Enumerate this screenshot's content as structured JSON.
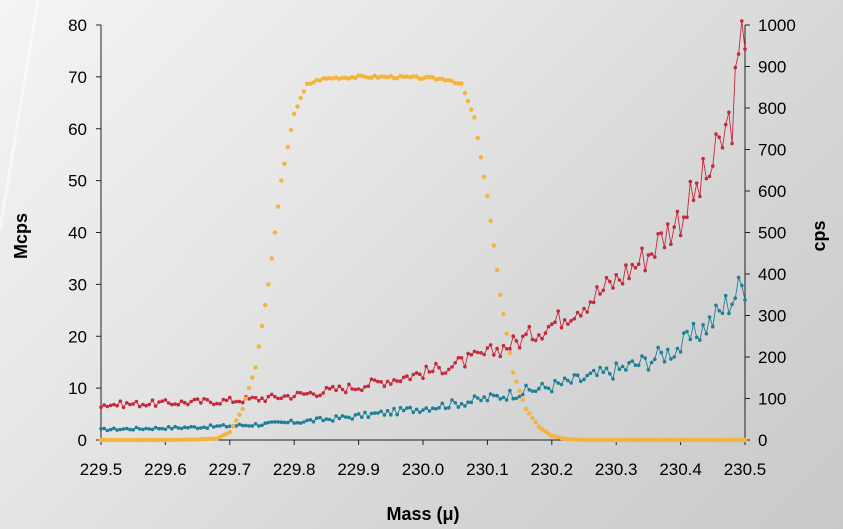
{
  "chart_data": {
    "type": "scatter",
    "title": "",
    "xlabel": "Mass (μ)",
    "ylabel_left": "Mcps",
    "ylabel_right": "cps",
    "xlim": [
      229.5,
      230.5
    ],
    "ylim_left": [
      0,
      80
    ],
    "ylim_right": [
      0,
      1000
    ],
    "grid": false,
    "legend": "none",
    "x_ticks": [
      "229.5",
      "229.6",
      "229.7",
      "229.8",
      "229.9",
      "230.0",
      "230.1",
      "230.2",
      "230.3",
      "230.4",
      "230.5"
    ],
    "y_left_ticks": [
      "0",
      "10",
      "20",
      "30",
      "40",
      "50",
      "60",
      "70",
      "80"
    ],
    "y_right_ticks": [
      "0",
      "100",
      "200",
      "300",
      "400",
      "500",
      "600",
      "700",
      "800",
      "900",
      "1000"
    ],
    "series": [
      {
        "axis": "left",
        "color": "#f6b33a",
        "style": "markers",
        "x": [
          229.5,
          229.55,
          229.6,
          229.65,
          229.68,
          229.7,
          229.72,
          229.74,
          229.76,
          229.78,
          229.8,
          229.82,
          229.84,
          229.86,
          229.9,
          229.95,
          230.0,
          230.04,
          230.06,
          230.08,
          230.1,
          230.12,
          230.14,
          230.16,
          230.18,
          230.2,
          230.22,
          230.25,
          230.3,
          230.4,
          230.5
        ],
        "y": [
          0,
          0,
          0,
          0.1,
          0.3,
          1.5,
          6,
          14,
          30,
          50,
          63,
          68.5,
          69.5,
          69.8,
          70,
          70,
          69.8,
          69.5,
          68.5,
          62,
          47,
          28,
          13,
          6,
          2.5,
          0.8,
          0.2,
          0,
          0,
          0,
          0
        ]
      },
      {
        "axis": "right",
        "color": "#c8283c",
        "style": "line-markers",
        "x": [
          229.5,
          229.55,
          229.6,
          229.65,
          229.7,
          229.75,
          229.8,
          229.85,
          229.9,
          229.95,
          230.0,
          230.05,
          230.1,
          230.15,
          230.2,
          230.25,
          230.3,
          230.35,
          230.4,
          230.45,
          230.48,
          230.5
        ],
        "y": [
          85,
          87,
          89,
          92,
          95,
          100,
          108,
          118,
          130,
          145,
          162,
          182,
          208,
          240,
          280,
          330,
          385,
          450,
          540,
          660,
          780,
          1000
        ]
      },
      {
        "axis": "right",
        "color": "#1f7f96",
        "style": "line-markers",
        "x": [
          229.5,
          229.55,
          229.6,
          229.65,
          229.7,
          229.75,
          229.8,
          229.85,
          229.9,
          229.95,
          230.0,
          230.05,
          230.1,
          230.15,
          230.2,
          230.25,
          230.3,
          230.35,
          230.4,
          230.45,
          230.5
        ],
        "y": [
          25,
          27,
          29,
          31,
          34,
          38,
          43,
          50,
          58,
          67,
          77,
          88,
          100,
          115,
          130,
          148,
          168,
          192,
          225,
          290,
          380
        ]
      }
    ]
  }
}
